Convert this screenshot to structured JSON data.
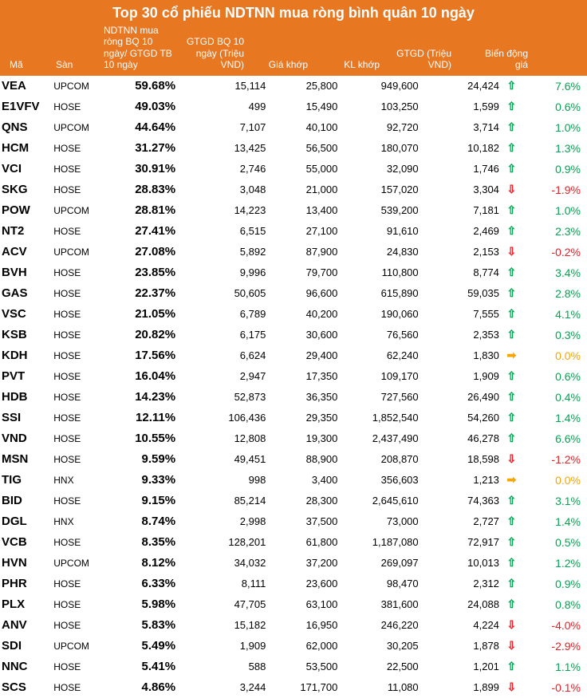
{
  "title": "Top 30 cổ phiếu NDTNN mua ròng bình quân 10 ngày",
  "columns": {
    "ma": "Mã",
    "san": "Sàn",
    "pct": "NDTNN mua ròng BQ 10 ngày/ GTGD TB 10 ngày",
    "gtgdbq": "GTGD BQ 10 ngày (Triệu VND)",
    "gia": "Giá khớp",
    "kl": "KL khớp",
    "gtgd": "GTGD (Triệu VND)",
    "chg": "Biến động giá"
  },
  "colors": {
    "header_bg": "#e87722",
    "header_text": "#ffffff",
    "up": "#00a651",
    "down": "#ed1c24",
    "flat": "#f7a600",
    "text": "#000000"
  },
  "rows": [
    {
      "ma": "VEA",
      "san": "UPCOM",
      "pct": "59.68%",
      "gtgdbq": "15,114",
      "gia": "25,800",
      "kl": "949,600",
      "gtgd": "24,424",
      "dir": "up",
      "chg": "7.6%"
    },
    {
      "ma": "E1VFV",
      "san": "HOSE",
      "pct": "49.03%",
      "gtgdbq": "499",
      "gia": "15,490",
      "kl": "103,250",
      "gtgd": "1,599",
      "dir": "up",
      "chg": "0.6%"
    },
    {
      "ma": "QNS",
      "san": "UPCOM",
      "pct": "44.64%",
      "gtgdbq": "7,107",
      "gia": "40,100",
      "kl": "92,720",
      "gtgd": "3,714",
      "dir": "up",
      "chg": "1.0%"
    },
    {
      "ma": "HCM",
      "san": "HOSE",
      "pct": "31.27%",
      "gtgdbq": "13,425",
      "gia": "56,500",
      "kl": "180,070",
      "gtgd": "10,182",
      "dir": "up",
      "chg": "1.3%"
    },
    {
      "ma": "VCI",
      "san": "HOSE",
      "pct": "30.91%",
      "gtgdbq": "2,746",
      "gia": "55,000",
      "kl": "32,090",
      "gtgd": "1,746",
      "dir": "up",
      "chg": "0.9%"
    },
    {
      "ma": "SKG",
      "san": "HOSE",
      "pct": "28.83%",
      "gtgdbq": "3,048",
      "gia": "21,000",
      "kl": "157,020",
      "gtgd": "3,304",
      "dir": "down",
      "chg": "-1.9%"
    },
    {
      "ma": "POW",
      "san": "UPCOM",
      "pct": "28.81%",
      "gtgdbq": "14,223",
      "gia": "13,400",
      "kl": "539,200",
      "gtgd": "7,181",
      "dir": "up",
      "chg": "1.0%"
    },
    {
      "ma": "NT2",
      "san": "HOSE",
      "pct": "27.41%",
      "gtgdbq": "6,515",
      "gia": "27,100",
      "kl": "91,610",
      "gtgd": "2,469",
      "dir": "up",
      "chg": "2.3%"
    },
    {
      "ma": "ACV",
      "san": "UPCOM",
      "pct": "27.08%",
      "gtgdbq": "5,892",
      "gia": "87,900",
      "kl": "24,830",
      "gtgd": "2,153",
      "dir": "down",
      "chg": "-0.2%"
    },
    {
      "ma": "BVH",
      "san": "HOSE",
      "pct": "23.85%",
      "gtgdbq": "9,996",
      "gia": "79,700",
      "kl": "110,800",
      "gtgd": "8,774",
      "dir": "up",
      "chg": "3.4%"
    },
    {
      "ma": "GAS",
      "san": "HOSE",
      "pct": "22.37%",
      "gtgdbq": "50,605",
      "gia": "96,600",
      "kl": "615,890",
      "gtgd": "59,035",
      "dir": "up",
      "chg": "2.8%"
    },
    {
      "ma": "VSC",
      "san": "HOSE",
      "pct": "21.05%",
      "gtgdbq": "6,789",
      "gia": "40,200",
      "kl": "190,060",
      "gtgd": "7,555",
      "dir": "up",
      "chg": "4.1%"
    },
    {
      "ma": "KSB",
      "san": "HOSE",
      "pct": "20.82%",
      "gtgdbq": "6,175",
      "gia": "30,600",
      "kl": "76,560",
      "gtgd": "2,353",
      "dir": "up",
      "chg": "0.3%"
    },
    {
      "ma": "KDH",
      "san": "HOSE",
      "pct": "17.56%",
      "gtgdbq": "6,624",
      "gia": "29,400",
      "kl": "62,240",
      "gtgd": "1,830",
      "dir": "flat",
      "chg": "0.0%"
    },
    {
      "ma": "PVT",
      "san": "HOSE",
      "pct": "16.04%",
      "gtgdbq": "2,947",
      "gia": "17,350",
      "kl": "109,170",
      "gtgd": "1,909",
      "dir": "up",
      "chg": "0.6%"
    },
    {
      "ma": "HDB",
      "san": "HOSE",
      "pct": "14.23%",
      "gtgdbq": "52,873",
      "gia": "36,350",
      "kl": "727,560",
      "gtgd": "26,490",
      "dir": "up",
      "chg": "0.4%"
    },
    {
      "ma": "SSI",
      "san": "HOSE",
      "pct": "12.11%",
      "gtgdbq": "106,436",
      "gia": "29,350",
      "kl": "1,852,540",
      "gtgd": "54,260",
      "dir": "up",
      "chg": "1.4%"
    },
    {
      "ma": "VND",
      "san": "HOSE",
      "pct": "10.55%",
      "gtgdbq": "12,808",
      "gia": "19,300",
      "kl": "2,437,490",
      "gtgd": "46,278",
      "dir": "up",
      "chg": "6.6%"
    },
    {
      "ma": "MSN",
      "san": "HOSE",
      "pct": "9.59%",
      "gtgdbq": "49,451",
      "gia": "88,900",
      "kl": "208,870",
      "gtgd": "18,598",
      "dir": "down",
      "chg": "-1.2%"
    },
    {
      "ma": "TIG",
      "san": "HNX",
      "pct": "9.33%",
      "gtgdbq": "998",
      "gia": "3,400",
      "kl": "356,603",
      "gtgd": "1,213",
      "dir": "flat",
      "chg": "0.0%"
    },
    {
      "ma": "BID",
      "san": "HOSE",
      "pct": "9.15%",
      "gtgdbq": "85,214",
      "gia": "28,300",
      "kl": "2,645,610",
      "gtgd": "74,363",
      "dir": "up",
      "chg": "3.1%"
    },
    {
      "ma": "DGL",
      "san": "HNX",
      "pct": "8.74%",
      "gtgdbq": "2,998",
      "gia": "37,500",
      "kl": "73,000",
      "gtgd": "2,727",
      "dir": "up",
      "chg": "1.4%"
    },
    {
      "ma": "VCB",
      "san": "HOSE",
      "pct": "8.35%",
      "gtgdbq": "128,201",
      "gia": "61,800",
      "kl": "1,187,080",
      "gtgd": "72,917",
      "dir": "up",
      "chg": "0.5%"
    },
    {
      "ma": "HVN",
      "san": "UPCOM",
      "pct": "8.12%",
      "gtgdbq": "34,032",
      "gia": "37,200",
      "kl": "269,097",
      "gtgd": "10,013",
      "dir": "up",
      "chg": "1.2%"
    },
    {
      "ma": "PHR",
      "san": "HOSE",
      "pct": "6.33%",
      "gtgdbq": "8,111",
      "gia": "23,600",
      "kl": "98,470",
      "gtgd": "2,312",
      "dir": "up",
      "chg": "0.9%"
    },
    {
      "ma": "PLX",
      "san": "HOSE",
      "pct": "5.98%",
      "gtgdbq": "47,705",
      "gia": "63,100",
      "kl": "381,600",
      "gtgd": "24,088",
      "dir": "up",
      "chg": "0.8%"
    },
    {
      "ma": "ANV",
      "san": "HOSE",
      "pct": "5.83%",
      "gtgdbq": "15,182",
      "gia": "16,950",
      "kl": "246,220",
      "gtgd": "4,224",
      "dir": "down",
      "chg": "-4.0%"
    },
    {
      "ma": "SDI",
      "san": "UPCOM",
      "pct": "5.49%",
      "gtgdbq": "1,909",
      "gia": "62,000",
      "kl": "30,205",
      "gtgd": "1,878",
      "dir": "down",
      "chg": "-2.9%"
    },
    {
      "ma": "NNC",
      "san": "HOSE",
      "pct": "5.41%",
      "gtgdbq": "588",
      "gia": "53,500",
      "kl": "22,500",
      "gtgd": "1,201",
      "dir": "up",
      "chg": "1.1%"
    },
    {
      "ma": "SCS",
      "san": "HOSE",
      "pct": "4.86%",
      "gtgdbq": "3,244",
      "gia": "171,700",
      "kl": "11,080",
      "gtgd": "1,899",
      "dir": "down",
      "chg": "-0.1%"
    }
  ]
}
